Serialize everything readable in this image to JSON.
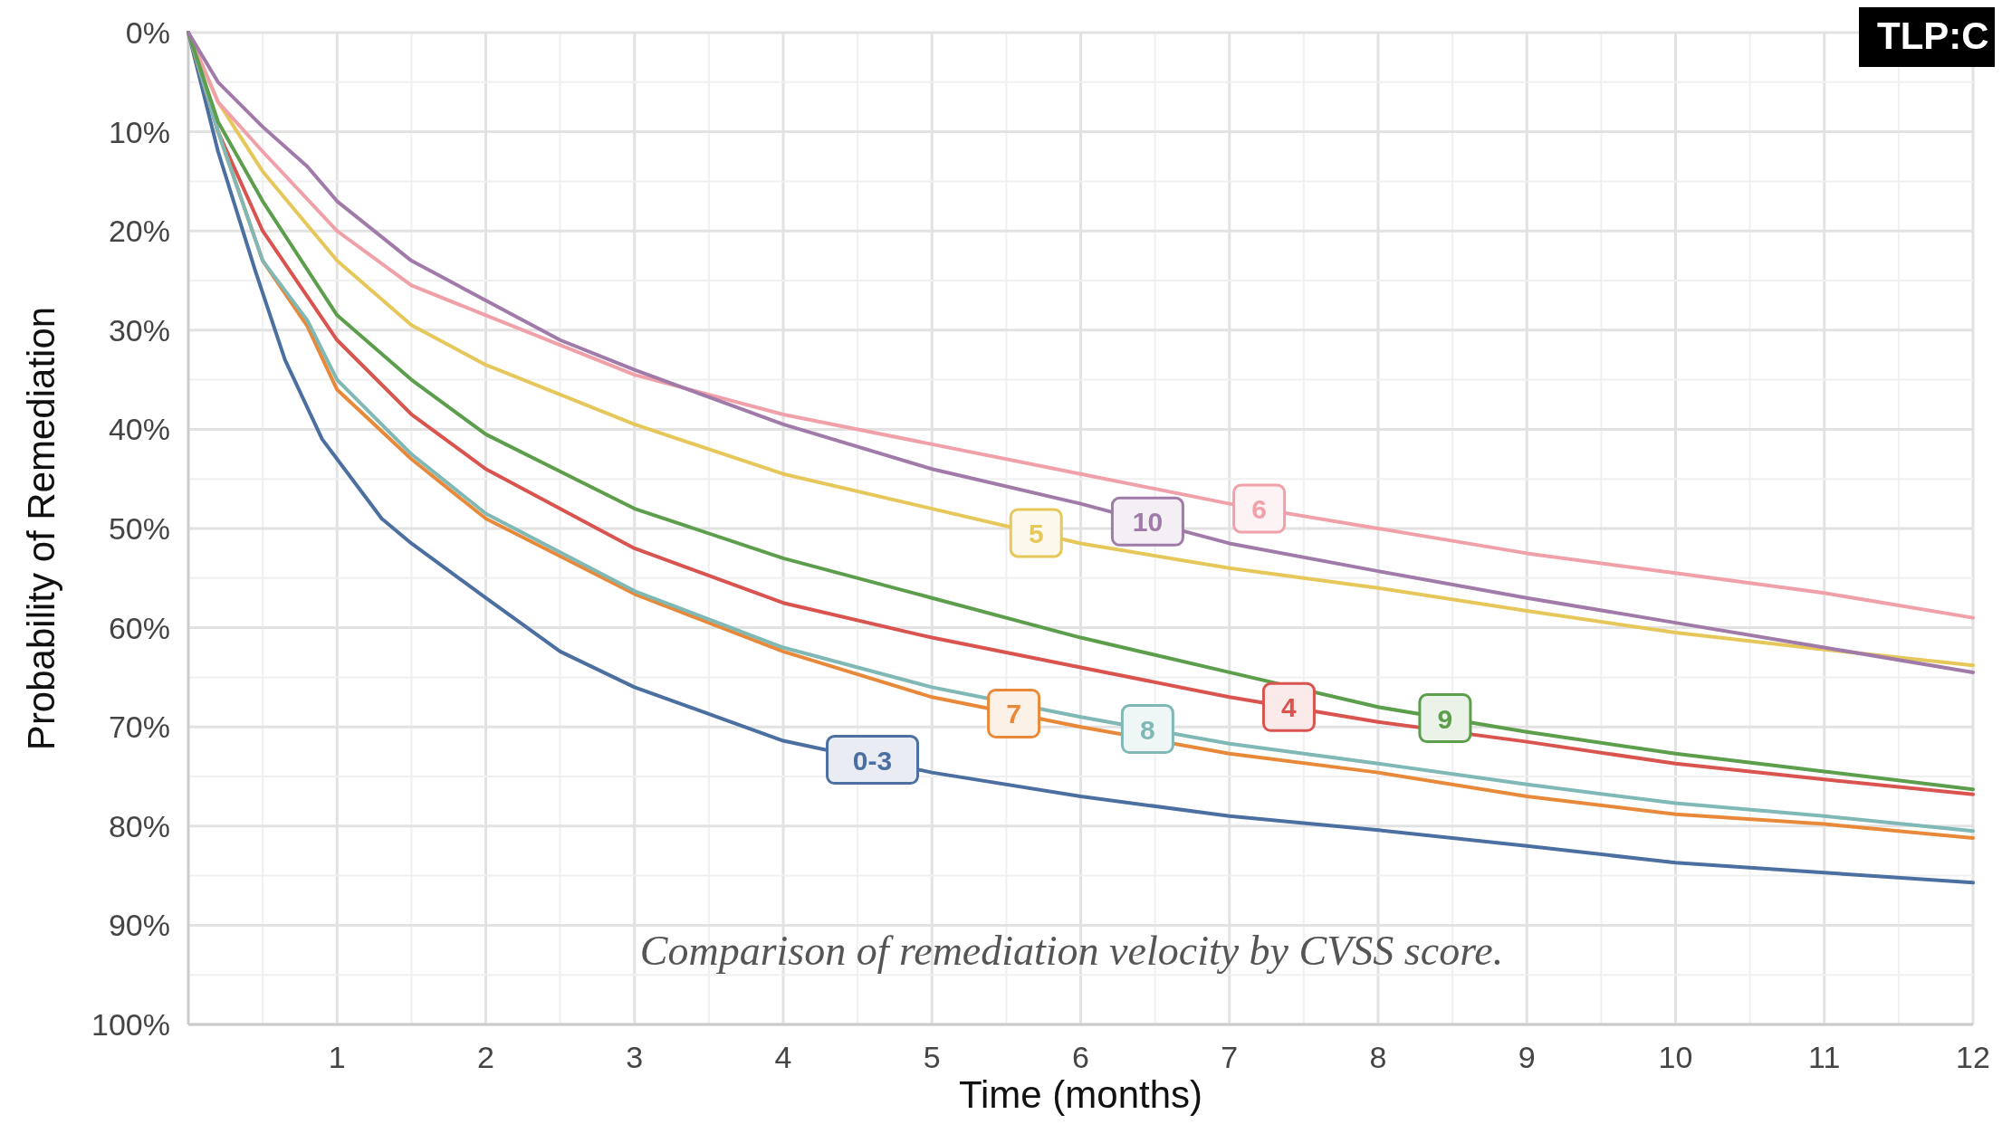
{
  "chart_data": {
    "type": "line",
    "xlabel": "Time (months)",
    "ylabel": "Probability of Remediation",
    "annotations": [
      "Comparison of remediation velocity by CVSS score.",
      "TLP:C"
    ],
    "xlim": [
      0,
      12
    ],
    "xticks": [
      {
        "value": 0.5,
        "label": null
      },
      1,
      {
        "value": 1.5,
        "label": null
      },
      2,
      {
        "value": 2.5,
        "label": null
      },
      3,
      {
        "value": 3.5,
        "label": null
      },
      4,
      {
        "value": 4.5,
        "label": null
      },
      5,
      {
        "value": 5.5,
        "label": null
      },
      6,
      {
        "value": 6.5,
        "label": null
      },
      7,
      {
        "value": 7.5,
        "label": null
      },
      8,
      {
        "value": 8.5,
        "label": null
      },
      9,
      {
        "value": 9.5,
        "label": null
      },
      10,
      {
        "value": 10.5,
        "label": null
      },
      11,
      {
        "value": 11.5,
        "label": null
      },
      12
    ],
    "ylim": [
      100,
      0
    ],
    "yticks": [
      {
        "value": 0,
        "label": "0%"
      },
      {
        "value": 5,
        "label": null
      },
      {
        "value": 10,
        "label": "10%"
      },
      {
        "value": 15,
        "label": null
      },
      {
        "value": 20,
        "label": "20%"
      },
      {
        "value": 25,
        "label": null
      },
      {
        "value": 30,
        "label": "30%"
      },
      {
        "value": 35,
        "label": null
      },
      {
        "value": 40,
        "label": "40%"
      },
      {
        "value": 45,
        "label": null
      },
      {
        "value": 50,
        "label": "50%"
      },
      {
        "value": 55,
        "label": null
      },
      {
        "value": 60,
        "label": "60%"
      },
      {
        "value": 65,
        "label": null
      },
      {
        "value": 70,
        "label": "70%"
      },
      {
        "value": 75,
        "label": null
      },
      {
        "value": 80,
        "label": "80%"
      },
      {
        "value": 85,
        "label": null
      },
      {
        "value": 90,
        "label": "90%"
      },
      {
        "value": 95,
        "label": null
      },
      {
        "value": 100,
        "label": "100%"
      }
    ],
    "grid": true,
    "marker": "none",
    "line_style": "solid",
    "series": [
      {
        "name": "0-3",
        "color": "#4a6fa0",
        "x": [
          0,
          0.2,
          0.45,
          0.65,
          0.9,
          1,
          1.3,
          1.5,
          2,
          2.5,
          3,
          4,
          5,
          6,
          7,
          8,
          9,
          10,
          11,
          12
        ],
        "values": [
          0,
          12,
          24,
          33,
          41,
          43,
          49,
          51.5,
          57,
          62.4,
          66,
          71.4,
          74.6,
          77,
          79,
          80.4,
          82,
          83.7,
          84.7,
          85.7
        ]
      },
      {
        "name": "4",
        "color": "#d9534f",
        "x": [
          0,
          0.2,
          0.5,
          1,
          1.5,
          2,
          3,
          4,
          5,
          6,
          7,
          8,
          9,
          10,
          11,
          12
        ],
        "values": [
          0,
          10,
          20,
          31,
          38.5,
          44,
          52,
          57.5,
          61,
          64,
          67,
          69.5,
          71.5,
          73.7,
          75.3,
          76.8
        ]
      },
      {
        "name": "5",
        "color": "#e6c75a",
        "x": [
          0,
          0.2,
          0.5,
          1,
          1.5,
          2,
          3,
          4,
          5,
          6,
          7,
          8,
          9,
          10,
          11,
          12
        ],
        "values": [
          0,
          7,
          14,
          23,
          29.5,
          33.5,
          39.5,
          44.5,
          48,
          51.5,
          54,
          56,
          58.3,
          60.5,
          62.2,
          63.8
        ]
      },
      {
        "name": "6",
        "color": "#f0a0a8",
        "x": [
          0,
          0.2,
          0.5,
          1,
          1.5,
          2,
          3,
          4,
          5,
          6,
          7,
          8,
          9,
          10,
          11,
          12
        ],
        "values": [
          0,
          7,
          12,
          20,
          25.5,
          28.5,
          34.5,
          38.5,
          41.5,
          44.5,
          47.5,
          50,
          52.5,
          54.5,
          56.5,
          59
        ]
      },
      {
        "name": "7",
        "color": "#e8893a",
        "x": [
          0,
          0.2,
          0.5,
          0.8,
          1,
          1.5,
          2,
          3,
          4,
          5,
          6,
          7,
          8,
          9,
          10,
          11,
          12
        ],
        "values": [
          0,
          10,
          23,
          29.6,
          36,
          43,
          49,
          56.6,
          62.4,
          67,
          70,
          72.7,
          74.6,
          77,
          78.8,
          79.8,
          81.2
        ]
      },
      {
        "name": "8",
        "color": "#7fb8b4",
        "x": [
          0,
          0.2,
          0.5,
          0.8,
          1,
          1.5,
          2,
          3,
          4,
          5,
          6,
          7,
          8,
          9,
          10,
          11,
          12
        ],
        "values": [
          0,
          10,
          23,
          29,
          35,
          42.5,
          48.5,
          56.3,
          62,
          66,
          69,
          71.7,
          73.7,
          75.8,
          77.7,
          79,
          80.5
        ]
      },
      {
        "name": "9",
        "color": "#5c9e4c",
        "x": [
          0,
          0.2,
          0.5,
          1,
          1.5,
          2,
          3,
          4,
          5,
          6,
          7,
          8,
          9,
          10,
          11,
          12
        ],
        "values": [
          0,
          9,
          17,
          28.5,
          35,
          40.5,
          48,
          53,
          57,
          61,
          64.5,
          68,
          70.5,
          72.7,
          74.5,
          76.3
        ]
      },
      {
        "name": "10",
        "color": "#a07aa8",
        "x": [
          0,
          0.2,
          0.5,
          0.8,
          1,
          1.5,
          2,
          2.5,
          3,
          4,
          5,
          6,
          7,
          8,
          9,
          10,
          11,
          12
        ],
        "values": [
          0,
          5,
          9.5,
          13.5,
          17,
          23,
          27,
          31,
          34,
          39.5,
          44,
          47.5,
          51.5,
          54.3,
          57,
          59.5,
          62,
          64.5
        ]
      }
    ]
  }
}
